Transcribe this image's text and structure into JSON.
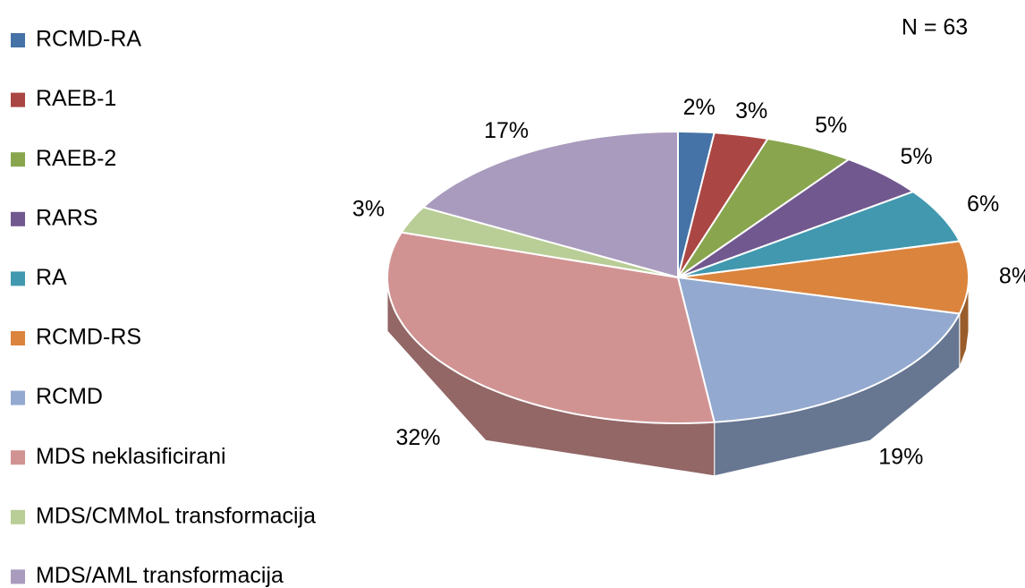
{
  "chart_data": {
    "type": "pie",
    "annotation": "N = 63",
    "categories": [
      "RCMD-RA",
      "RAEB-1",
      "RAEB-2",
      "RARS",
      "RA",
      "RCMD-RS",
      "RCMD",
      "MDS neklasificirani",
      "MDS/CMMoL transformacija",
      "MDS/AML transformacija"
    ],
    "values": [
      2,
      3,
      5,
      5,
      6,
      8,
      19,
      32,
      3,
      17
    ],
    "value_labels": [
      "2%",
      "3%",
      "5%",
      "5%",
      "6%",
      "8%",
      "19%",
      "32%",
      "3%",
      "17%"
    ],
    "colors": [
      "#4572a7",
      "#aa4643",
      "#89a54e",
      "#71588f",
      "#4198af",
      "#db843d",
      "#93a9cf",
      "#d19392",
      "#b9cd96",
      "#a99bbd"
    ],
    "legend": "left"
  }
}
